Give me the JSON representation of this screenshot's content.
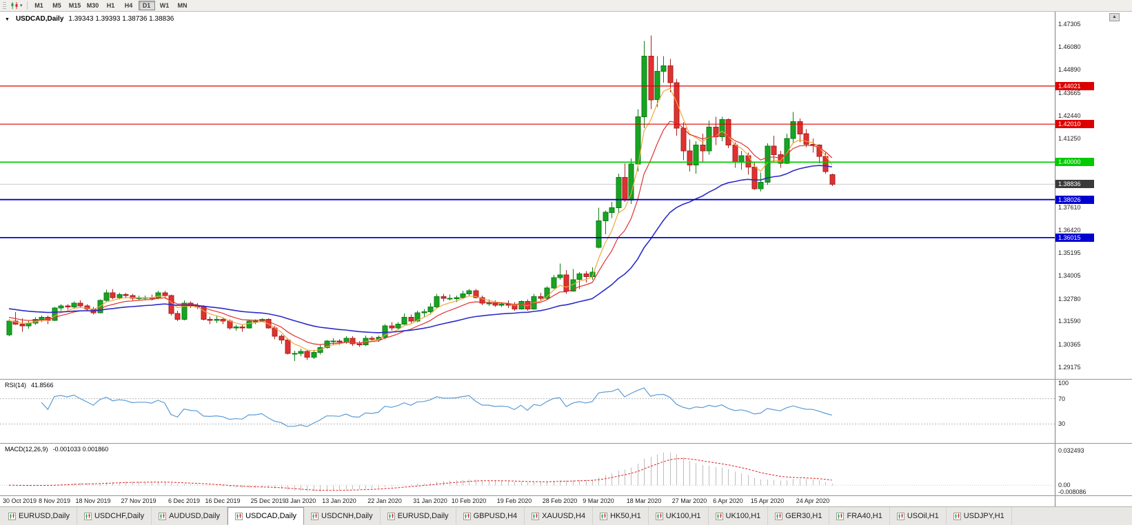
{
  "toolbar": {
    "chart_type": "candlestick",
    "timeframes": [
      {
        "label": "M1",
        "active": false
      },
      {
        "label": "M5",
        "active": false
      },
      {
        "label": "M15",
        "active": false
      },
      {
        "label": "M30",
        "active": false
      },
      {
        "label": "H1",
        "active": false
      },
      {
        "label": "H4",
        "active": false
      },
      {
        "label": "D1",
        "active": true
      },
      {
        "label": "W1",
        "active": false
      },
      {
        "label": "MN",
        "active": false
      }
    ]
  },
  "chart": {
    "title_symbol": "USDCAD,Daily",
    "title_ohlc": "1.39343 1.39393 1.38736 1.38836"
  },
  "rsi_panel": {
    "name": "RSI(14)",
    "value": "41.8566"
  },
  "macd_panel": {
    "name": "MACD(12,26,9)",
    "values": "-0.001033 0.001860"
  },
  "tabs": [
    {
      "label": "EURUSD,Daily",
      "active": false
    },
    {
      "label": "USDCHF,Daily",
      "active": false
    },
    {
      "label": "AUDUSD,Daily",
      "active": false
    },
    {
      "label": "USDCAD,Daily",
      "active": true
    },
    {
      "label": "USDCNH,Daily",
      "active": false
    },
    {
      "label": "EURUSD,Daily",
      "active": false
    },
    {
      "label": "GBPUSD,H4",
      "active": false
    },
    {
      "label": "XAUUSD,H4",
      "active": false
    },
    {
      "label": "HK50,H1",
      "active": false
    },
    {
      "label": "UK100,H1",
      "active": false
    },
    {
      "label": "UK100,H1",
      "active": false
    },
    {
      "label": "GER30,H1",
      "active": false
    },
    {
      "label": "FRA40,H1",
      "active": false
    },
    {
      "label": "USOil,H1",
      "active": false
    },
    {
      "label": "USDJPY,H1",
      "active": false
    }
  ],
  "chart_data": {
    "type": "candlestick",
    "symbol": "USDCAD",
    "timeframe": "Daily",
    "ohlc_current": {
      "open": 1.39343,
      "high": 1.39393,
      "low": 1.38736,
      "close": 1.38836
    },
    "price_axis": {
      "min": 1.2855,
      "max": 1.4795,
      "ticks": [
        "1.47305",
        "1.46080",
        "1.44890",
        "1.43665",
        "1.42440",
        "1.41250",
        "1.40025",
        "1.37610",
        "1.36420",
        "1.35195",
        "1.34005",
        "1.32780",
        "1.31590",
        "1.30365",
        "1.29175"
      ]
    },
    "x_axis": {
      "labels": [
        {
          "text": "30 Oct 2019",
          "i": 0
        },
        {
          "text": "8 Nov 2019",
          "i": 7
        },
        {
          "text": "18 Nov 2019",
          "i": 13
        },
        {
          "text": "27 Nov 2019",
          "i": 20
        },
        {
          "text": "6 Dec 2019",
          "i": 27
        },
        {
          "text": "16 Dec 2019",
          "i": 33
        },
        {
          "text": "25 Dec 2019",
          "i": 40
        },
        {
          "text": "3 Jan 2020",
          "i": 45
        },
        {
          "text": "13 Jan 2020",
          "i": 51
        },
        {
          "text": "22 Jan 2020",
          "i": 58
        },
        {
          "text": "31 Jan 2020",
          "i": 65
        },
        {
          "text": "10 Feb 2020",
          "i": 71
        },
        {
          "text": "19 Feb 2020",
          "i": 78
        },
        {
          "text": "28 Feb 2020",
          "i": 85
        },
        {
          "text": "9 Mar 2020",
          "i": 91
        },
        {
          "text": "18 Mar 2020",
          "i": 98
        },
        {
          "text": "27 Mar 2020",
          "i": 105
        },
        {
          "text": "6 Apr 2020",
          "i": 111
        },
        {
          "text": "15 Apr 2020",
          "i": 117
        },
        {
          "text": "24 Apr 2020",
          "i": 124
        }
      ]
    },
    "candles": [
      [
        1.3088,
        1.317,
        1.308,
        1.316
      ],
      [
        1.316,
        1.3208,
        1.314,
        1.3145
      ],
      [
        1.3145,
        1.3175,
        1.3105,
        1.3135
      ],
      [
        1.3135,
        1.316,
        1.312,
        1.315
      ],
      [
        1.315,
        1.318,
        1.314,
        1.317
      ],
      [
        1.317,
        1.319,
        1.3155,
        1.318
      ],
      [
        1.318,
        1.319,
        1.3145,
        1.3165
      ],
      [
        1.3165,
        1.3235,
        1.316,
        1.323
      ],
      [
        1.323,
        1.325,
        1.3215,
        1.324
      ],
      [
        1.324,
        1.325,
        1.322,
        1.3235
      ],
      [
        1.3235,
        1.3265,
        1.3225,
        1.3255
      ],
      [
        1.3255,
        1.327,
        1.323,
        1.324
      ],
      [
        1.324,
        1.325,
        1.3215,
        1.3225
      ],
      [
        1.3225,
        1.3235,
        1.3195,
        1.3205
      ],
      [
        1.3205,
        1.3275,
        1.32,
        1.327
      ],
      [
        1.327,
        1.3327,
        1.326,
        1.331
      ],
      [
        1.331,
        1.333,
        1.3275,
        1.3285
      ],
      [
        1.3285,
        1.331,
        1.3275,
        1.33
      ],
      [
        1.33,
        1.331,
        1.328,
        1.3295
      ],
      [
        1.3295,
        1.3305,
        1.327,
        1.328
      ],
      [
        1.328,
        1.3295,
        1.327,
        1.3285
      ],
      [
        1.3285,
        1.3295,
        1.3275,
        1.3285
      ],
      [
        1.3285,
        1.33,
        1.327,
        1.328
      ],
      [
        1.328,
        1.332,
        1.3275,
        1.331
      ],
      [
        1.331,
        1.332,
        1.3285,
        1.3295
      ],
      [
        1.3295,
        1.33,
        1.319,
        1.32
      ],
      [
        1.32,
        1.3215,
        1.316,
        1.317
      ],
      [
        1.317,
        1.327,
        1.3165,
        1.3255
      ],
      [
        1.3255,
        1.3265,
        1.323,
        1.324
      ],
      [
        1.324,
        1.3255,
        1.3225,
        1.3235
      ],
      [
        1.3235,
        1.3245,
        1.3165,
        1.317
      ],
      [
        1.317,
        1.3185,
        1.3145,
        1.3165
      ],
      [
        1.3165,
        1.319,
        1.315,
        1.317
      ],
      [
        1.317,
        1.318,
        1.3145,
        1.316
      ],
      [
        1.316,
        1.317,
        1.3115,
        1.3125
      ],
      [
        1.3125,
        1.314,
        1.311,
        1.313
      ],
      [
        1.313,
        1.314,
        1.3105,
        1.3125
      ],
      [
        1.3125,
        1.3165,
        1.312,
        1.316
      ],
      [
        1.316,
        1.317,
        1.3145,
        1.316
      ],
      [
        1.316,
        1.3175,
        1.3155,
        1.317
      ],
      [
        1.317,
        1.3175,
        1.312,
        1.3125
      ],
      [
        1.3125,
        1.3135,
        1.3065,
        1.308
      ],
      [
        1.308,
        1.309,
        1.304,
        1.306
      ],
      [
        1.306,
        1.307,
        1.2985,
        1.299
      ],
      [
        1.299,
        1.3005,
        1.295,
        1.299
      ],
      [
        1.299,
        1.3015,
        1.2975,
        1.3
      ],
      [
        1.3,
        1.301,
        1.2955,
        1.297
      ],
      [
        1.297,
        1.301,
        1.296,
        1.2995
      ],
      [
        1.2995,
        1.3035,
        1.2985,
        1.302
      ],
      [
        1.302,
        1.306,
        1.3015,
        1.3055
      ],
      [
        1.3055,
        1.307,
        1.3035,
        1.3055
      ],
      [
        1.3055,
        1.3065,
        1.3035,
        1.305
      ],
      [
        1.305,
        1.308,
        1.304,
        1.307
      ],
      [
        1.307,
        1.308,
        1.303,
        1.304
      ],
      [
        1.304,
        1.3055,
        1.3025,
        1.3035
      ],
      [
        1.3035,
        1.3085,
        1.303,
        1.307
      ],
      [
        1.307,
        1.308,
        1.3055,
        1.3065
      ],
      [
        1.3065,
        1.3085,
        1.305,
        1.3075
      ],
      [
        1.3075,
        1.3145,
        1.3065,
        1.3135
      ],
      [
        1.3135,
        1.3155,
        1.311,
        1.3125
      ],
      [
        1.3125,
        1.3155,
        1.3115,
        1.3145
      ],
      [
        1.3145,
        1.32,
        1.314,
        1.318
      ],
      [
        1.318,
        1.3195,
        1.315,
        1.316
      ],
      [
        1.316,
        1.3215,
        1.3155,
        1.3205
      ],
      [
        1.3205,
        1.3225,
        1.318,
        1.321
      ],
      [
        1.321,
        1.3255,
        1.3195,
        1.3235
      ],
      [
        1.3235,
        1.3305,
        1.323,
        1.329
      ],
      [
        1.329,
        1.3305,
        1.3265,
        1.328
      ],
      [
        1.328,
        1.33,
        1.327,
        1.328
      ],
      [
        1.328,
        1.3295,
        1.326,
        1.3285
      ],
      [
        1.3285,
        1.332,
        1.328,
        1.3305
      ],
      [
        1.3305,
        1.333,
        1.3295,
        1.332
      ],
      [
        1.332,
        1.333,
        1.328,
        1.3285
      ],
      [
        1.3285,
        1.3295,
        1.3245,
        1.3255
      ],
      [
        1.3255,
        1.3275,
        1.324,
        1.3255
      ],
      [
        1.3255,
        1.327,
        1.3235,
        1.3245
      ],
      [
        1.3245,
        1.326,
        1.3235,
        1.325
      ],
      [
        1.325,
        1.327,
        1.323,
        1.3245
      ],
      [
        1.3245,
        1.326,
        1.3215,
        1.3225
      ],
      [
        1.3225,
        1.327,
        1.322,
        1.3265
      ],
      [
        1.3265,
        1.3275,
        1.3215,
        1.3225
      ],
      [
        1.3225,
        1.3305,
        1.322,
        1.329
      ],
      [
        1.329,
        1.331,
        1.327,
        1.328
      ],
      [
        1.328,
        1.3345,
        1.3275,
        1.3335
      ],
      [
        1.3335,
        1.3405,
        1.333,
        1.339
      ],
      [
        1.339,
        1.3465,
        1.338,
        1.3405
      ],
      [
        1.3405,
        1.343,
        1.3305,
        1.332
      ],
      [
        1.332,
        1.3435,
        1.3315,
        1.338
      ],
      [
        1.338,
        1.342,
        1.333,
        1.341
      ],
      [
        1.341,
        1.3425,
        1.3365,
        1.3395
      ],
      [
        1.3395,
        1.3445,
        1.338,
        1.342
      ],
      [
        1.355,
        1.376,
        1.3545,
        1.369
      ],
      [
        1.369,
        1.3745,
        1.362,
        1.3735
      ],
      [
        1.3735,
        1.379,
        1.3705,
        1.376
      ],
      [
        1.376,
        1.394,
        1.373,
        1.392
      ],
      [
        1.392,
        1.3995,
        1.379,
        1.38
      ],
      [
        1.38,
        1.402,
        1.378,
        1.399
      ],
      [
        1.399,
        1.428,
        1.395,
        1.424
      ],
      [
        1.424,
        1.464,
        1.418,
        1.456
      ],
      [
        1.456,
        1.4669,
        1.428,
        1.433
      ],
      [
        1.433,
        1.456,
        1.429,
        1.448
      ],
      [
        1.448,
        1.456,
        1.442,
        1.451
      ],
      [
        1.451,
        1.4545,
        1.437,
        1.442
      ],
      [
        1.442,
        1.444,
        1.414,
        1.418
      ],
      [
        1.418,
        1.421,
        1.401,
        1.406
      ],
      [
        1.406,
        1.412,
        1.395,
        1.3985
      ],
      [
        1.3985,
        1.411,
        1.394,
        1.409
      ],
      [
        1.409,
        1.415,
        1.4,
        1.406
      ],
      [
        1.406,
        1.422,
        1.404,
        1.4185
      ],
      [
        1.4185,
        1.424,
        1.409,
        1.4135
      ],
      [
        1.4135,
        1.424,
        1.411,
        1.4225
      ],
      [
        1.4225,
        1.423,
        1.4075,
        1.409
      ],
      [
        1.409,
        1.4105,
        1.397,
        1.4
      ],
      [
        1.4,
        1.406,
        1.396,
        1.4035
      ],
      [
        1.4035,
        1.405,
        1.3935,
        1.3975
      ],
      [
        1.3975,
        1.4,
        1.3855,
        1.386
      ],
      [
        1.386,
        1.3945,
        1.3845,
        1.3895
      ],
      [
        1.3895,
        1.41,
        1.388,
        1.4085
      ],
      [
        1.4085,
        1.414,
        1.4,
        1.404
      ],
      [
        1.404,
        1.406,
        1.397,
        1.3995
      ],
      [
        1.3995,
        1.415,
        1.399,
        1.4125
      ],
      [
        1.4125,
        1.4265,
        1.41,
        1.4215
      ],
      [
        1.4215,
        1.423,
        1.4105,
        1.415
      ],
      [
        1.415,
        1.4175,
        1.408,
        1.4095
      ],
      [
        1.4095,
        1.4125,
        1.405,
        1.409
      ],
      [
        1.409,
        1.4095,
        1.3995,
        1.403
      ],
      [
        1.403,
        1.405,
        1.394,
        1.395
      ],
      [
        1.39343,
        1.39393,
        1.38736,
        1.38836
      ]
    ],
    "candle_colors": {
      "up": "#17a423",
      "up_border": "#0d7c16",
      "down": "#e03131",
      "down_border": "#a92020"
    },
    "moving_averages": [
      {
        "name": "fast",
        "period": 5,
        "seed": 1.3165,
        "color": "#efa73a",
        "width": 1.2
      },
      {
        "name": "mid",
        "period": 10,
        "seed": 1.3185,
        "color": "#e03131",
        "width": 1.2
      },
      {
        "name": "slow",
        "period": 34,
        "seed": 1.323,
        "color": "#2a2ac8",
        "width": 1.6
      }
    ],
    "levels": [
      {
        "text": "1.44021",
        "price": 1.44021,
        "color": "#dd0000",
        "width": 1.2
      },
      {
        "text": "1.42010",
        "price": 1.4201,
        "color": "#dd0000",
        "width": 1.2
      },
      {
        "text": "1.40000",
        "price": 1.4,
        "color": "#00ca00",
        "width": 1.8
      },
      {
        "text": "1.38026",
        "price": 1.38026,
        "color": "#0000d0",
        "width": 1.8
      },
      {
        "text": "1.36015",
        "price": 1.36015,
        "color": "#0000d0",
        "width": 1.8
      }
    ],
    "current_price": {
      "text": "1.38836",
      "price": 1.38836,
      "badge": "#3a3a3a",
      "line_color": "#c9c9c9"
    },
    "rsi": {
      "period": 14,
      "color": "#5b9bd5",
      "guides": [
        70,
        30
      ],
      "ticks": [
        {
          "text": "100",
          "v": 100
        },
        {
          "text": "70",
          "v": 70
        },
        {
          "text": "30",
          "v": 30
        }
      ]
    },
    "macd": {
      "fast": 12,
      "slow": 26,
      "signal": 9,
      "hist_color": "#bdbdbd",
      "signal_color": "#e02020",
      "range": [
        -0.0095,
        0.039
      ],
      "ticks": [
        {
          "text": "0.032493",
          "v": 0.032493
        },
        {
          "text": "0.00",
          "v": 0
        },
        {
          "text": "-0.008086",
          "v": -0.008086
        }
      ]
    }
  }
}
